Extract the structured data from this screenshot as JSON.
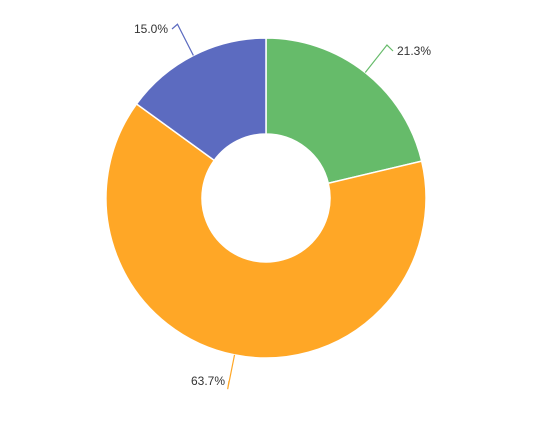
{
  "chart_data": {
    "type": "pie",
    "variant": "donut",
    "title": "",
    "slices": [
      {
        "value": 21.3,
        "label": "21.3%",
        "color": "#66bb6a"
      },
      {
        "value": 63.7,
        "label": "63.7%",
        "color": "#ffa726"
      },
      {
        "value": 15.0,
        "label": "15.0%",
        "color": "#5c6bc0"
      }
    ],
    "start_angle_deg": 0,
    "direction": "clockwise"
  }
}
